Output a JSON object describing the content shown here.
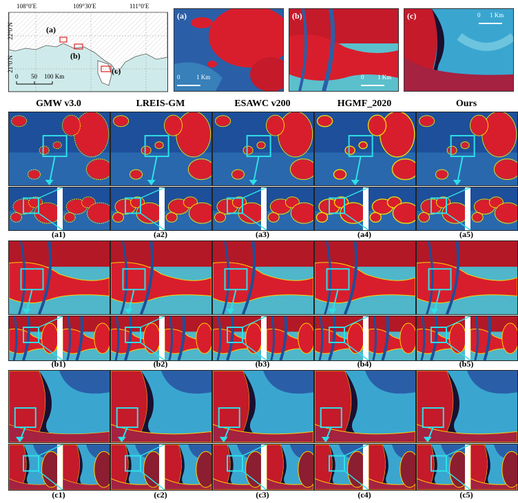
{
  "locator_map": {
    "lon_ticks": [
      "108°0′E",
      "109°30′E",
      "111°0′E"
    ],
    "lat_ticks": [
      "22°0′N",
      "21°0′N"
    ],
    "region_labels": [
      "(a)",
      "(b)",
      "(c)"
    ],
    "scale_ticks": [
      "0",
      "50",
      "100 Km"
    ]
  },
  "overview_panels": [
    {
      "label": "(a)",
      "scale_start": "0",
      "scale_end": "1 Km"
    },
    {
      "label": "(b)",
      "scale_start": "0",
      "scale_end": "1 Km"
    },
    {
      "label": "(c)",
      "scale_start": "0",
      "scale_end": "1 Km"
    }
  ],
  "columns": [
    "GMW v3.0",
    "LREIS-GM",
    "ESAWC v200",
    "HGMF_2020",
    "Ours"
  ],
  "rows": [
    {
      "region": "a",
      "labels": [
        "(a1)",
        "(a2)",
        "(a3)",
        "(a4)",
        "(a5)"
      ]
    },
    {
      "region": "b",
      "labels": [
        "(b1)",
        "(b2)",
        "(b3)",
        "(b4)",
        "(b5)"
      ]
    },
    {
      "region": "c",
      "labels": [
        "(c1)",
        "(c2)",
        "(c3)",
        "(c4)",
        "(c5)"
      ]
    }
  ],
  "colors": {
    "mangrove_boundary": "#ffd200",
    "zoom_box": "#2ee0e8",
    "vegetation": "#d81e2c",
    "water_deep": "#1d4f9a",
    "water_shallow": "#4fb7c9"
  }
}
